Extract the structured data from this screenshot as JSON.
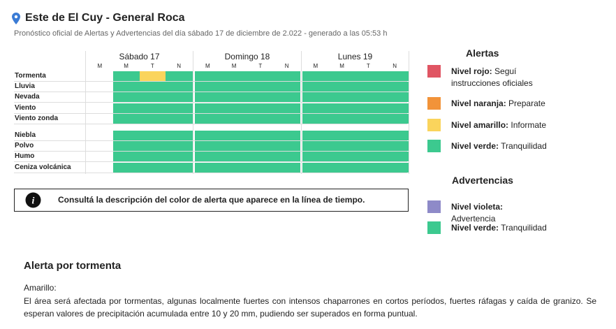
{
  "header": {
    "title": "Este de El Cuy - General Roca",
    "subtitle": "Pronóstico oficial de Alertas y Advertencias del día sábado 17 de diciembre de 2.022 - generado a las 05:53 h"
  },
  "timeline": {
    "days": [
      {
        "name": "Sábado 17",
        "periods": [
          "M",
          "M",
          "T",
          "N"
        ]
      },
      {
        "name": "Domingo 18",
        "periods": [
          "M",
          "M",
          "T",
          "N"
        ]
      },
      {
        "name": "Lunes 19",
        "periods": [
          "M",
          "M",
          "T",
          "N"
        ]
      }
    ],
    "groups": [
      {
        "rows": [
          {
            "label": "Tormenta",
            "cells": [
              null,
              "#3cc98f",
              "#fad45c",
              "#3cc98f",
              "#3cc98f",
              "#3cc98f",
              "#3cc98f",
              "#3cc98f",
              "#3cc98f",
              "#3cc98f",
              "#3cc98f",
              "#3cc98f"
            ]
          },
          {
            "label": "Lluvia",
            "cells": [
              null,
              "#3cc98f",
              "#3cc98f",
              "#3cc98f",
              "#3cc98f",
              "#3cc98f",
              "#3cc98f",
              "#3cc98f",
              "#3cc98f",
              "#3cc98f",
              "#3cc98f",
              "#3cc98f"
            ]
          },
          {
            "label": "Nevada",
            "cells": [
              null,
              "#3cc98f",
              "#3cc98f",
              "#3cc98f",
              "#3cc98f",
              "#3cc98f",
              "#3cc98f",
              "#3cc98f",
              "#3cc98f",
              "#3cc98f",
              "#3cc98f",
              "#3cc98f"
            ]
          },
          {
            "label": "Viento",
            "cells": [
              null,
              "#3cc98f",
              "#3cc98f",
              "#3cc98f",
              "#3cc98f",
              "#3cc98f",
              "#3cc98f",
              "#3cc98f",
              "#3cc98f",
              "#3cc98f",
              "#3cc98f",
              "#3cc98f"
            ]
          },
          {
            "label": "Viento zonda",
            "cells": [
              null,
              "#3cc98f",
              "#3cc98f",
              "#3cc98f",
              "#3cc98f",
              "#3cc98f",
              "#3cc98f",
              "#3cc98f",
              "#3cc98f",
              "#3cc98f",
              "#3cc98f",
              "#3cc98f"
            ]
          }
        ]
      },
      {
        "rows": [
          {
            "label": "Niebla",
            "cells": [
              null,
              "#3cc98f",
              "#3cc98f",
              "#3cc98f",
              "#3cc98f",
              "#3cc98f",
              "#3cc98f",
              "#3cc98f",
              "#3cc98f",
              "#3cc98f",
              "#3cc98f",
              "#3cc98f"
            ]
          },
          {
            "label": "Polvo",
            "cells": [
              null,
              "#3cc98f",
              "#3cc98f",
              "#3cc98f",
              "#3cc98f",
              "#3cc98f",
              "#3cc98f",
              "#3cc98f",
              "#3cc98f",
              "#3cc98f",
              "#3cc98f",
              "#3cc98f"
            ]
          },
          {
            "label": "Humo",
            "cells": [
              null,
              "#3cc98f",
              "#3cc98f",
              "#3cc98f",
              "#3cc98f",
              "#3cc98f",
              "#3cc98f",
              "#3cc98f",
              "#3cc98f",
              "#3cc98f",
              "#3cc98f",
              "#3cc98f"
            ]
          },
          {
            "label": "Ceniza volcánica",
            "cells": [
              null,
              "#3cc98f",
              "#3cc98f",
              "#3cc98f",
              "#3cc98f",
              "#3cc98f",
              "#3cc98f",
              "#3cc98f",
              "#3cc98f",
              "#3cc98f",
              "#3cc98f",
              "#3cc98f"
            ]
          }
        ]
      }
    ]
  },
  "info": {
    "text": "Consultá la descripción del color de alerta que aparece en la línea de tiempo."
  },
  "legend": [
    {
      "title": "Alertas",
      "items": [
        {
          "label": "Nivel rojo:",
          "text": "Seguí instrucciones oficiales",
          "color": "#e05563"
        },
        {
          "label": "Nivel naranja:",
          "text": "Preparate",
          "color": "#f29339"
        },
        {
          "label": "Nivel amarillo:",
          "text": "Informate",
          "color": "#fad45c"
        },
        {
          "label": "Nivel verde:",
          "text": "Tranquilidad",
          "color": "#3cc98f"
        }
      ]
    },
    {
      "title": "Advertencias",
      "items": [
        {
          "label": "Nivel violeta:",
          "text": "Advertencia",
          "color": "#8e8ac8"
        },
        {
          "label": "Nivel verde:",
          "text": "Tranquilidad",
          "color": "#3cc98f"
        }
      ]
    }
  ],
  "section": {
    "title": "Alerta por tormenta",
    "level": "Amarillo:",
    "description": "El área será afectada por tormentas, algunas localmente fuertes con intensos chaparrones en cortos períodos, fuertes ráfagas y caída de granizo. Se esperan valores de precipitación acumulada entre 10 y 20 mm, pudiendo ser superados en forma puntual."
  }
}
